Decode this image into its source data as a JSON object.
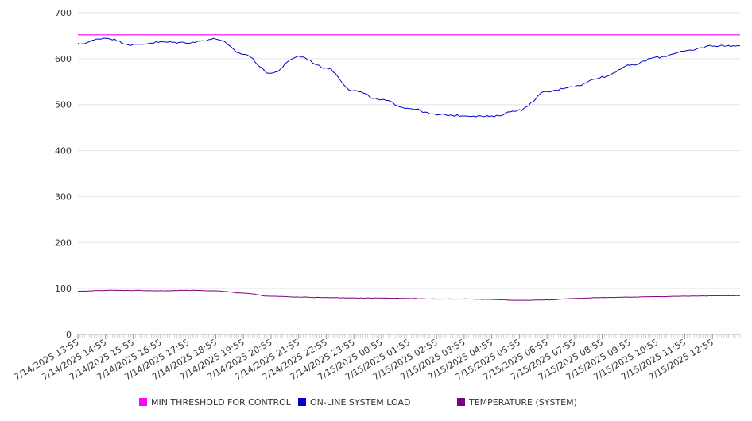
{
  "chart_data": {
    "type": "line",
    "title": "",
    "xlabel": "",
    "ylabel": "",
    "ylim": [
      0,
      700
    ],
    "yticks": [
      "0",
      "100",
      "200",
      "300",
      "400",
      "500",
      "600",
      "700"
    ],
    "grid": true,
    "legend_position": "bottom",
    "x": [
      "7/14/2025 13:55",
      "7/14/2025 14:55",
      "7/14/2025 15:55",
      "7/14/2025 16:55",
      "7/14/2025 17:55",
      "7/14/2025 18:55",
      "7/14/2025 19:55",
      "7/14/2025 20:55",
      "7/14/2025 21:55",
      "7/14/2025 22:55",
      "7/14/2025 23:55",
      "7/15/2025 00:55",
      "7/15/2025 01:55",
      "7/15/2025 02:55",
      "7/15/2025 03:55",
      "7/15/2025 04:55",
      "7/15/2025 05:55",
      "7/15/2025 06:55",
      "7/15/2025 07:55",
      "7/15/2025 08:55",
      "7/15/2025 09:55",
      "7/15/2025 10:55",
      "7/15/2025 11:55",
      "7/15/2025 12:55"
    ],
    "series": [
      {
        "name": "MIN THRESHOLD FOR CONTROL",
        "color": "#ff00ff",
        "values": [
          652,
          652,
          652,
          652,
          652,
          652,
          652,
          652,
          652,
          652,
          652,
          652,
          652,
          652,
          652,
          652,
          652,
          652,
          652,
          652,
          652,
          652,
          652,
          652
        ]
      },
      {
        "name": "ON-LINE SYSTEM LOAD",
        "color": "#0000cc",
        "values": [
          632,
          645,
          630,
          636,
          635,
          643,
          610,
          568,
          605,
          580,
          530,
          510,
          492,
          478,
          476,
          474,
          488,
          528,
          540,
          560,
          585,
          603,
          616,
          628
        ]
      },
      {
        "name": "TEMPERATURE (SYSTEM)",
        "color": "#800080",
        "values": [
          94,
          96,
          96,
          95,
          96,
          95,
          90,
          83,
          81,
          80,
          79,
          79,
          78,
          77,
          77,
          76,
          74,
          75,
          78,
          80,
          81,
          82,
          83,
          84
        ]
      }
    ]
  }
}
